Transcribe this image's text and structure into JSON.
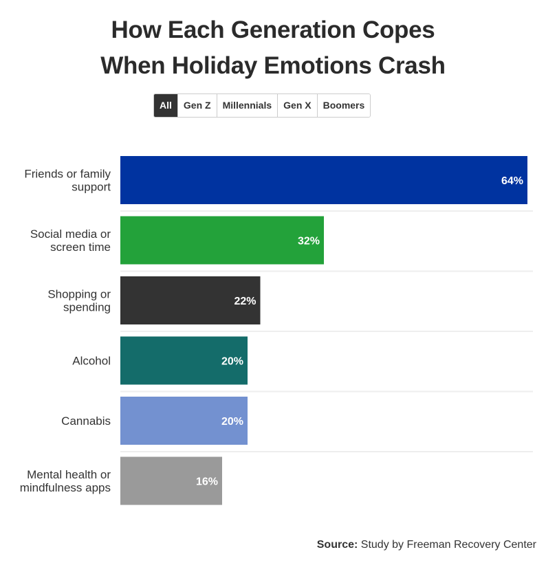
{
  "title_lines": [
    "How Each Generation Copes",
    "When Holiday Emotions Crash"
  ],
  "filter_tabs": [
    {
      "label": "All",
      "active": true
    },
    {
      "label": "Gen Z",
      "active": false
    },
    {
      "label": "Millennials",
      "active": false
    },
    {
      "label": "Gen X",
      "active": false
    },
    {
      "label": "Boomers",
      "active": false
    }
  ],
  "source": {
    "label": "Source:",
    "text": "Study by Freeman Recovery Center"
  },
  "chart_data": {
    "type": "bar",
    "orientation": "horizontal",
    "categories": [
      [
        "Friends or family",
        "support"
      ],
      [
        "Social media or",
        "screen time"
      ],
      [
        "Shopping or",
        "spending"
      ],
      [
        "Alcohol"
      ],
      [
        "Cannabis"
      ],
      [
        "Mental health or",
        "mindfulness apps"
      ]
    ],
    "values": [
      64,
      32,
      22,
      20,
      20,
      16
    ],
    "value_labels": [
      "64%",
      "32%",
      "22%",
      "20%",
      "20%",
      "16%"
    ],
    "colors": [
      "#0033a0",
      "#23a23a",
      "#333333",
      "#146c6a",
      "#7391d0",
      "#9a9a9a"
    ],
    "xlim": [
      0,
      64
    ],
    "grid": false
  }
}
